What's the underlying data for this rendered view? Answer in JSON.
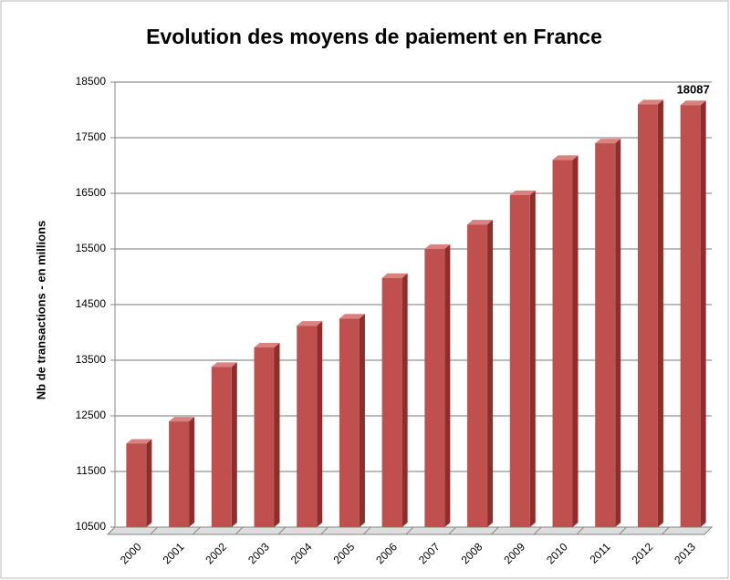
{
  "chart_data": {
    "type": "bar3d",
    "title": "Evolution des moyens de paiement en France",
    "y_label": "Nb de transactions - en millions",
    "categories": [
      "2000",
      "2001",
      "2002",
      "2003",
      "2004",
      "2005",
      "2006",
      "2007",
      "2008",
      "2009",
      "2010",
      "2011",
      "2012",
      "2013"
    ],
    "values": [
      12000,
      12400,
      13380,
      13730,
      14120,
      14250,
      14980,
      15500,
      15940,
      16470,
      17100,
      17400,
      18100,
      18087
    ],
    "color": "#c0504d",
    "ylim": [
      10500,
      18500
    ],
    "yticks": [
      10500,
      11500,
      12500,
      13500,
      14500,
      15500,
      16500,
      17500,
      18500
    ],
    "grid": true
  }
}
